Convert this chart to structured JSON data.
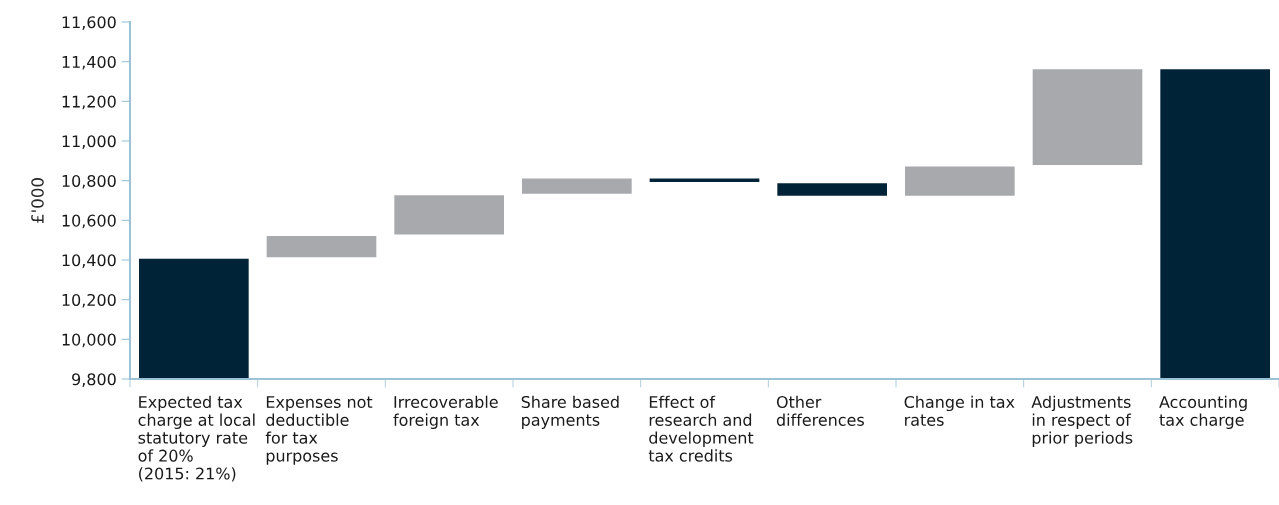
{
  "chart_data": {
    "type": "bar",
    "ylabel": "£'000",
    "categories": [
      "Expected tax\ncharge at local\nstatutory rate\nof 20%\n(2015: 21%)",
      "Expenses not\ndeductible\nfor tax\npurposes",
      "Irrecoverable\nforeign tax",
      "Share based\npayments",
      "Effect of\nresearch and\ndevelopment\ntax credits",
      "Other\ndifferences",
      "Change in tax\nrates",
      "Adjustments\nin respect of\nprior periods",
      "Accounting\ntax charge"
    ],
    "base": [
      9800,
      10410,
      10525,
      10730,
      10815,
      10790,
      10720,
      10875,
      9800
    ],
    "values": [
      610,
      115,
      205,
      85,
      -25,
      -70,
      155,
      490,
      1565
    ],
    "colors": [
      "#012337",
      "#a7a9ac",
      "#a7a9ac",
      "#a7a9ac",
      "#012337",
      "#012337",
      "#a7a9ac",
      "#a7a9ac",
      "#012337"
    ],
    "ylim": [
      9800,
      11600
    ],
    "yticks": [
      {
        "value": 9800,
        "label": "9,800"
      },
      {
        "value": 10000,
        "label": "10,000"
      },
      {
        "value": 10200,
        "label": "10,200"
      },
      {
        "value": 10400,
        "label": "10,400"
      },
      {
        "value": 10600,
        "label": "10,600"
      },
      {
        "value": 10800,
        "label": "10,800"
      },
      {
        "value": 11000,
        "label": "11,000"
      },
      {
        "value": 11200,
        "label": "11,200"
      },
      {
        "value": 11400,
        "label": "11,400"
      },
      {
        "value": 11600,
        "label": "11,600"
      }
    ],
    "grid": false,
    "legend": false
  }
}
